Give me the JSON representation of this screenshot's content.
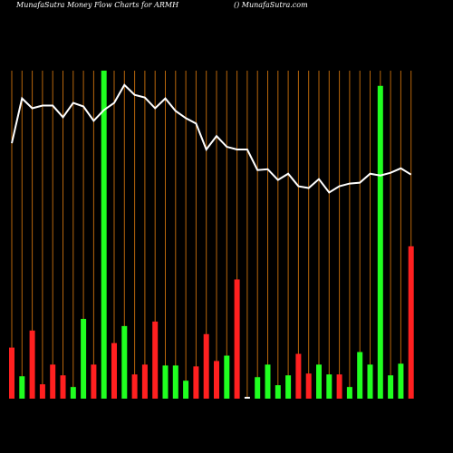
{
  "chart_data": {
    "type": "bar-line",
    "title": "MunafaSutra  Money Flow  Charts for ARMH",
    "subtitle": "() MunafaSutra.com",
    "categories": [
      null,
      null,
      null,
      null,
      null,
      null,
      null,
      null,
      null,
      null,
      null,
      null,
      null,
      null,
      null,
      null,
      null,
      null,
      null,
      null,
      null,
      null,
      null,
      null,
      null,
      null,
      null,
      null,
      null,
      null,
      null,
      null,
      null,
      null,
      null,
      null,
      null,
      null,
      null,
      null
    ],
    "values": [
      57,
      25,
      76,
      16,
      38,
      26,
      13,
      89,
      38,
      366,
      62,
      81,
      27,
      38,
      86,
      37,
      37,
      20,
      36,
      72,
      42,
      48,
      133,
      2,
      24,
      38,
      15,
      26,
      50,
      28,
      38,
      27,
      27,
      13,
      52,
      38,
      349,
      26,
      39,
      170
    ],
    "colors": [
      "#ff2020",
      "#20ff20",
      "#ff2020",
      "#ff2020",
      "#ff2020",
      "#ff2020",
      "#20ff20",
      "#20ff20",
      "#ff2020",
      "#20ff20",
      "#ff2020",
      "#20ff20",
      "#ff2020",
      "#ff2020",
      "#ff2020",
      "#20ff20",
      "#20ff20",
      "#20ff20",
      "#ff2020",
      "#ff2020",
      "#ff2020",
      "#20ff20",
      "#ff2020",
      "#ffffff",
      "#20ff20",
      "#20ff20",
      "#20ff20",
      "#20ff20",
      "#ff2020",
      "#ff2020",
      "#20ff20",
      "#20ff20",
      "#ff2020",
      "#20ff20",
      "#20ff20",
      "#20ff20",
      "#20ff20",
      "#20ff20",
      "#20ff20",
      "#ff2020"
    ],
    "line": [
      285,
      335,
      324,
      327,
      327,
      314,
      330,
      326,
      310,
      322,
      330,
      350,
      339,
      336,
      324,
      335,
      321,
      313,
      307,
      278,
      293,
      281,
      278,
      278,
      255,
      256,
      244,
      251,
      237,
      235,
      245,
      230,
      237,
      240,
      241,
      251,
      249,
      252,
      257,
      250
    ],
    "line_color": "#ffffff",
    "grid_color": "#b8660b",
    "ylim": [
      0,
      370
    ]
  }
}
